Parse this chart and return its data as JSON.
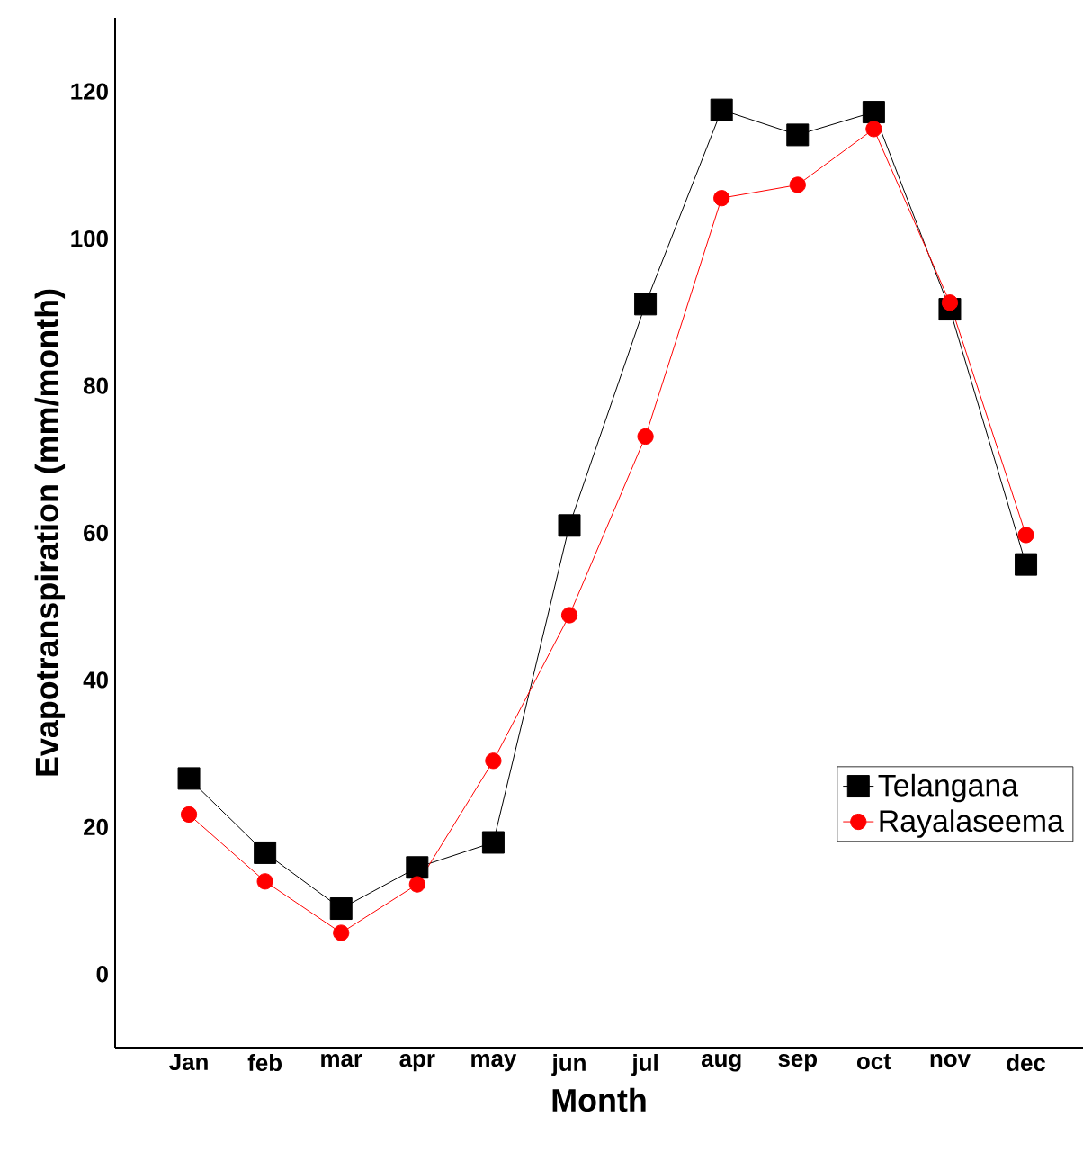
{
  "chart_data": {
    "type": "line",
    "xlabel": "Month",
    "ylabel": "Evapotranspiration (mm/month)",
    "categories": [
      "Jan",
      "feb",
      "mar",
      "apr",
      "may",
      "jun",
      "jul",
      "aug",
      "sep",
      "oct",
      "nov",
      "dec"
    ],
    "series": [
      {
        "name": "Telangana",
        "color": "#000000",
        "marker": "square",
        "values": [
          26.6,
          16.5,
          8.9,
          14.5,
          17.9,
          61.0,
          91.1,
          117.5,
          114.1,
          117.2,
          90.4,
          55.7
        ]
      },
      {
        "name": "Rayalaseema",
        "color": "#ff0000",
        "marker": "circle",
        "values": [
          21.7,
          12.6,
          5.6,
          12.2,
          29.0,
          48.8,
          73.1,
          105.5,
          107.3,
          114.9,
          91.3,
          59.7
        ]
      }
    ],
    "ylim": [
      -10,
      130
    ],
    "yticks": [
      0,
      20,
      40,
      60,
      80,
      100,
      120
    ],
    "grid": false,
    "legend": "bottom right",
    "line_style": "solid"
  }
}
